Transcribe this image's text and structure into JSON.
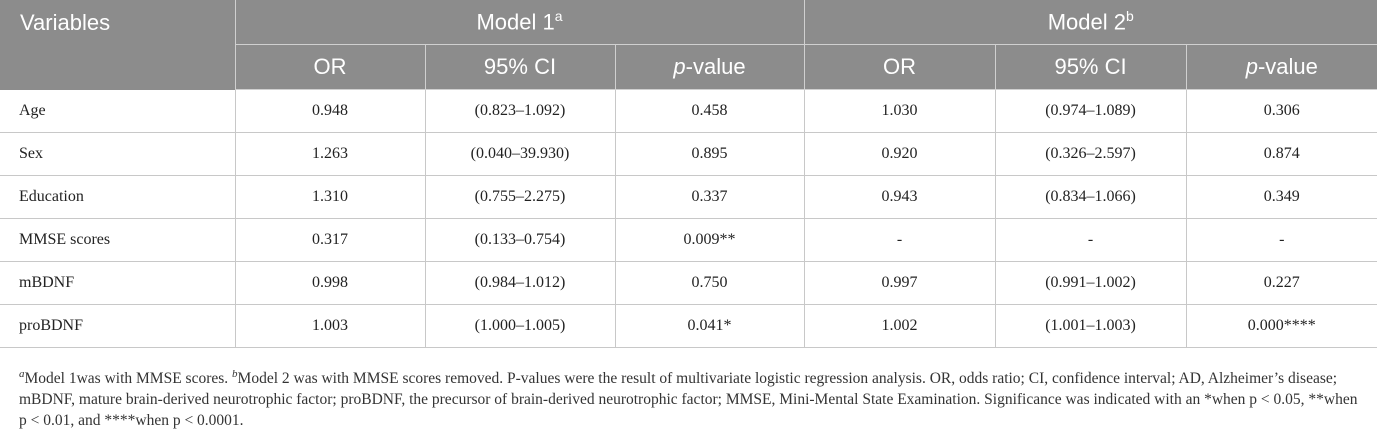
{
  "table": {
    "variables_header": "Variables",
    "model1": {
      "label": "Model 1",
      "sup": "a"
    },
    "model2": {
      "label": "Model 2",
      "sup": "b"
    },
    "col_or": "OR",
    "col_ci": "95% CI",
    "col_p_italic": "p",
    "col_p_rest": "-value",
    "rows": [
      {
        "variable": "Age",
        "m1_or": "0.948",
        "m1_ci": "(0.823–1.092)",
        "m1_p": "0.458",
        "m2_or": "1.030",
        "m2_ci": "(0.974–1.089)",
        "m2_p": "0.306"
      },
      {
        "variable": "Sex",
        "m1_or": "1.263",
        "m1_ci": "(0.040–39.930)",
        "m1_p": "0.895",
        "m2_or": "0.920",
        "m2_ci": "(0.326–2.597)",
        "m2_p": "0.874"
      },
      {
        "variable": "Education",
        "m1_or": "1.310",
        "m1_ci": "(0.755–2.275)",
        "m1_p": "0.337",
        "m2_or": "0.943",
        "m2_ci": "(0.834–1.066)",
        "m2_p": "0.349"
      },
      {
        "variable": "MMSE scores",
        "m1_or": "0.317",
        "m1_ci": "(0.133–0.754)",
        "m1_p": "0.009**",
        "m2_or": "-",
        "m2_ci": "-",
        "m2_p": "-"
      },
      {
        "variable": "mBDNF",
        "m1_or": "0.998",
        "m1_ci": "(0.984–1.012)",
        "m1_p": "0.750",
        "m2_or": "0.997",
        "m2_ci": "(0.991–1.002)",
        "m2_p": "0.227"
      },
      {
        "variable": "proBDNF",
        "m1_or": "1.003",
        "m1_ci": "(1.000–1.005)",
        "m1_p": "0.041*",
        "m2_or": "1.002",
        "m2_ci": "(1.001–1.003)",
        "m2_p": "0.000****"
      }
    ]
  },
  "footnote": {
    "sup_a": "a",
    "text_a": "Model 1was with MMSE scores. ",
    "sup_b": "b",
    "text_b": "Model 2 was with MMSE scores removed. P-values were the result of multivariate logistic regression analysis. OR, odds ratio; CI, confidence interval; AD, Alzheimer’s disease; mBDNF, mature brain-derived neurotrophic factor; proBDNF, the precursor of brain-derived neurotrophic factor; MMSE, Mini-Mental State Examination. Significance was indicated with an *when p < 0.05, **when p < 0.01, and ****when p < 0.0001."
  }
}
